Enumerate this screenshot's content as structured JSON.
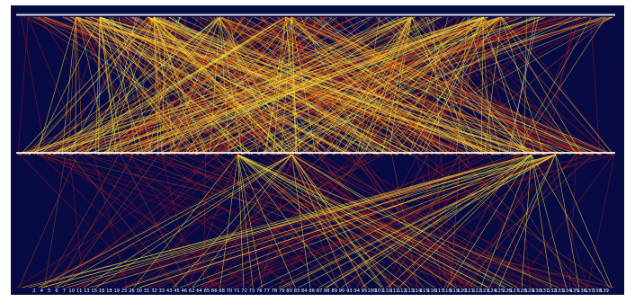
{
  "colors": {
    "background": "#080a44",
    "text": "#ffffff",
    "edge_red": "#c01a1a",
    "edge_orange": "#d65a12",
    "edge_yellow": "#f0e23a",
    "edge_pale_yellow": "#f4f08a"
  },
  "diagram": {
    "kind": "tripartite-edge-bundle",
    "rows": [
      {
        "id": "top",
        "labels": []
      },
      {
        "id": "middle",
        "labels": []
      },
      {
        "id": "bottom",
        "labels": [
          "2",
          "4",
          "5",
          "6",
          "7",
          "10",
          "11",
          "13",
          "15",
          "16",
          "18",
          "19",
          "25",
          "26",
          "30",
          "31",
          "32",
          "33",
          "43",
          "45",
          "46",
          "62",
          "64",
          "65",
          "66",
          "68",
          "70",
          "71",
          "72",
          "73",
          "76",
          "77",
          "78",
          "79",
          "80",
          "83",
          "84",
          "86",
          "87",
          "88",
          "89",
          "90",
          "93",
          "94",
          "95",
          "100",
          "101",
          "110",
          "111",
          "112",
          "113",
          "114",
          "115",
          "116",
          "117",
          "118",
          "119",
          "120",
          "121",
          "122",
          "123",
          "124",
          "125",
          "126",
          "127",
          "128",
          "129",
          "130",
          "131",
          "132",
          "133",
          "134",
          "135",
          "136",
          "137",
          "138",
          "139"
        ]
      }
    ],
    "hubs": {
      "top_to_middle": [
        0.1,
        0.14,
        0.22,
        0.23,
        0.34,
        0.45,
        0.46,
        0.66,
        0.78,
        0.81
      ],
      "middle_to_bottom": [
        0.37,
        0.46,
        0.86,
        0.9
      ]
    }
  }
}
